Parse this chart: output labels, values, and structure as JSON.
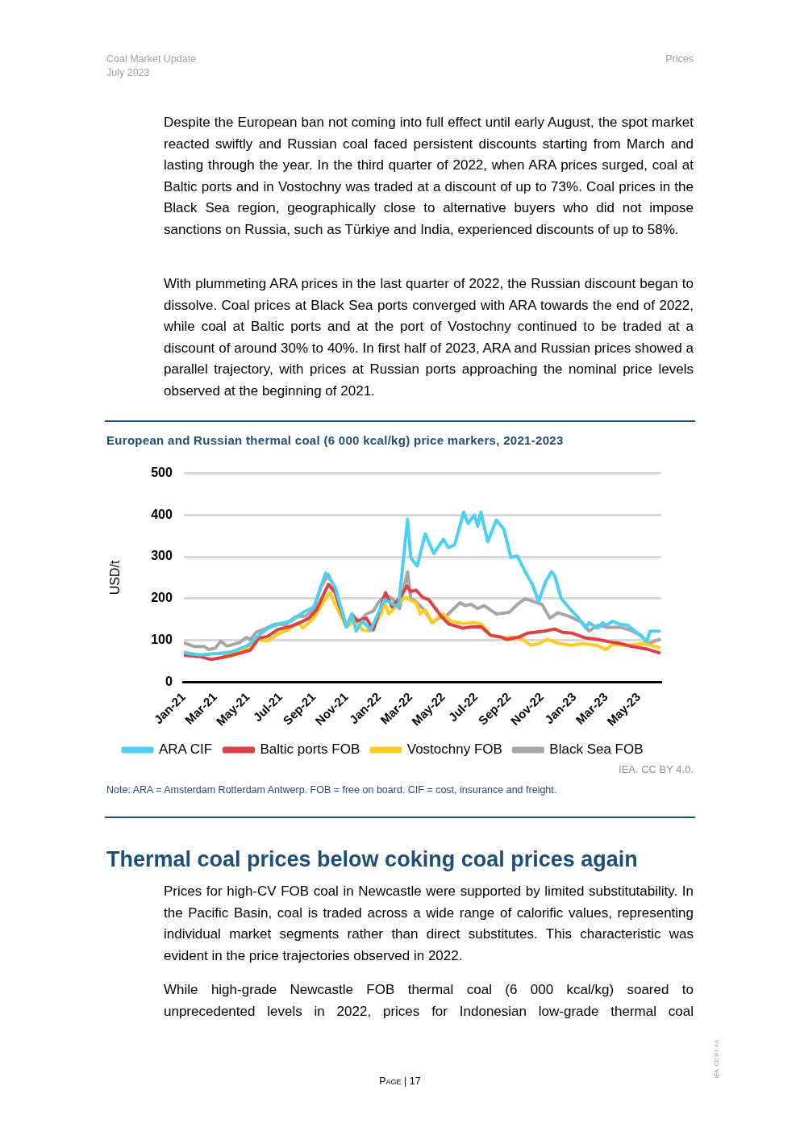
{
  "chart_data": {
    "type": "line",
    "title": "European and Russian thermal coal (6 000 kcal/kg) price markers, 2021-2023",
    "ylabel": "USD/t",
    "annotations": [
      "Coal Market Update",
      "July 2023",
      "Prices",
      "Despite the European ban not coming into full effect until early August, the spot market reacted swiftly and Russian coal faced persistent discounts starting from March and lasting through the year. In the third quarter of 2022, when ARA prices surged, coal at Baltic ports and in Vostochny was traded at a discount of up to 73%. Coal prices in the Black Sea region, geographically close to alternative buyers who did not impose sanctions on Russia, such as Türkiye and India, experienced discounts of up to 58%.",
      "With plummeting ARA prices in the last quarter of 2022, the Russian discount began to dissolve. Coal prices at Black Sea ports converged with ARA towards the end of 2022, while coal at Baltic ports and at the port of Vostochny continued to be traded at a discount of around 30% to 40%. In first half of 2023, ARA and Russian prices showed a parallel trajectory, with prices at Russian ports approaching the nominal price levels observed at the beginning of 2021.",
      "IEA. CC BY 4.0.",
      "Note: ARA = Amsterdam Rotterdam Antwerp. FOB = free on board. CIF = cost, insurance and freight.",
      "Thermal coal prices below coking coal prices again",
      "Prices for high-CV FOB coal in Newcastle were supported by limited substitutability. In the Pacific Basin, coal is traded across a wide range of calorific values, representing individual market segments rather than direct substitutes. This characteristic was evident in the price trajectories observed in 2022.",
      "While high-grade Newcastle FOB thermal coal (6 000 kcal/kg) soared to unprecedented levels in 2022, prices for Indonesian low-grade thermal coal",
      "Page | 17",
      "IEA. CC BY 4.0."
    ],
    "xlim": [
      "2021-01-01",
      "2023-06-12"
    ],
    "xticks": [
      {
        "value": "2021-01-01",
        "label": "Jan-21"
      },
      {
        "value": "2021-03-01",
        "label": "Mar-21"
      },
      {
        "value": "2021-05-01",
        "label": "May-21"
      },
      {
        "value": "2021-07-01",
        "label": "Jul-21"
      },
      {
        "value": "2021-09-01",
        "label": "Sep-21"
      },
      {
        "value": "2021-11-01",
        "label": "Nov-21"
      },
      {
        "value": "2022-01-01",
        "label": "Jan-22"
      },
      {
        "value": "2022-03-01",
        "label": "Mar-22"
      },
      {
        "value": "2022-05-01",
        "label": "May-22"
      },
      {
        "value": "2022-07-01",
        "label": "Jul-22"
      },
      {
        "value": "2022-09-01",
        "label": "Sep-22"
      },
      {
        "value": "2022-11-01",
        "label": "Nov-22"
      },
      {
        "value": "2023-01-01",
        "label": "Jan-23"
      },
      {
        "value": "2023-03-01",
        "label": "Mar-23"
      },
      {
        "value": "2023-05-01",
        "label": "May-23"
      }
    ],
    "ylim": [
      0,
      500
    ],
    "yticks": [
      0,
      100,
      200,
      300,
      400,
      500
    ],
    "grid": "y",
    "legend": "bottom",
    "marker": "none",
    "series": [
      {
        "name": "ARA CIF",
        "color": "#4dd0f5",
        "x": [
          "2021-01-01",
          "2021-02-01",
          "2021-03-01",
          "2021-04-01",
          "2021-05-01",
          "2021-05-21",
          "2021-06-08",
          "2021-06-26",
          "2021-07-21",
          "2021-08-11",
          "2021-09-01",
          "2021-09-23",
          "2021-10-11",
          "2021-11-01",
          "2021-11-11",
          "2021-11-19",
          "2021-12-01",
          "2021-12-16",
          "2022-01-11",
          "2022-02-06",
          "2022-02-23",
          "2022-03-01",
          "2022-03-13",
          "2022-03-28",
          "2022-04-13",
          "2022-05-01",
          "2022-05-10",
          "2022-05-22",
          "2022-06-08",
          "2022-06-16",
          "2022-06-28",
          "2022-07-04",
          "2022-07-10",
          "2022-07-23",
          "2022-08-08",
          "2022-08-22",
          "2022-09-04",
          "2022-09-16",
          "2022-10-01",
          "2022-10-14",
          "2022-10-26",
          "2022-11-08",
          "2022-11-19",
          "2022-11-25",
          "2022-12-07",
          "2022-12-25",
          "2023-01-07",
          "2023-01-22",
          "2023-01-28",
          "2023-02-13",
          "2023-02-22",
          "2023-03-02",
          "2023-03-13",
          "2023-03-25",
          "2023-04-10",
          "2023-05-01",
          "2023-05-16",
          "2023-05-22",
          "2023-06-08"
        ],
        "values": [
          70,
          65,
          68,
          72,
          88,
          112,
          129,
          139,
          146,
          166,
          180,
          261,
          227,
          132,
          163,
          122,
          146,
          125,
          197,
          180,
          390,
          298,
          278,
          355,
          308,
          342,
          322,
          329,
          407,
          380,
          400,
          373,
          407,
          336,
          388,
          366,
          298,
          302,
          264,
          234,
          193,
          241,
          264,
          254,
          200,
          173,
          156,
          129,
          142,
          129,
          142,
          136,
          146,
          139,
          136,
          115,
          98,
          122,
          122
        ]
      },
      {
        "name": "Baltic ports FOB",
        "color": "#e04040",
        "x": [
          "2021-01-03",
          "2021-02-01",
          "2021-02-21",
          "2021-03-11",
          "2021-04-01",
          "2021-04-21",
          "2021-05-06",
          "2021-05-21",
          "2021-06-06",
          "2021-06-26",
          "2021-07-16",
          "2021-08-06",
          "2021-08-23",
          "2021-09-06",
          "2021-09-28",
          "2021-10-11",
          "2021-11-01",
          "2021-11-11",
          "2021-11-21",
          "2021-12-08",
          "2021-12-21",
          "2022-01-13",
          "2022-01-25",
          "2022-02-07",
          "2022-02-22",
          "2022-03-01",
          "2022-03-11",
          "2022-03-23",
          "2022-04-04",
          "2022-04-16",
          "2022-04-26",
          "2022-05-11",
          "2022-06-07",
          "2022-06-22",
          "2022-07-11",
          "2022-07-28",
          "2022-08-16",
          "2022-08-28",
          "2022-09-20",
          "2022-10-05",
          "2022-11-05",
          "2022-11-25",
          "2022-12-10",
          "2022-12-28",
          "2023-01-20",
          "2023-02-14",
          "2023-03-04",
          "2023-03-25",
          "2023-04-19",
          "2023-05-16",
          "2023-06-08"
        ],
        "values": [
          64,
          61,
          54,
          58,
          64,
          71,
          77,
          105,
          109,
          126,
          132,
          142,
          153,
          173,
          234,
          214,
          132,
          163,
          146,
          153,
          125,
          214,
          180,
          200,
          230,
          217,
          220,
          203,
          197,
          176,
          159,
          139,
          129,
          132,
          132,
          112,
          108,
          102,
          108,
          117,
          122,
          127,
          119,
          117,
          106,
          102,
          97,
          93,
          85,
          79,
          70
        ]
      },
      {
        "name": "Vostochny FOB",
        "color": "#ffcc22",
        "x": [
          "2021-01-03",
          "2021-02-01",
          "2021-02-21",
          "2021-03-21",
          "2021-04-16",
          "2021-05-06",
          "2021-05-21",
          "2021-06-06",
          "2021-06-26",
          "2021-07-16",
          "2021-08-03",
          "2021-08-11",
          "2021-09-01",
          "2021-09-18",
          "2021-10-01",
          "2021-10-13",
          "2021-11-01",
          "2021-11-16",
          "2021-12-01",
          "2021-12-16",
          "2022-01-06",
          "2022-01-11",
          "2022-01-19",
          "2022-02-01",
          "2022-02-19",
          "2022-03-01",
          "2022-03-11",
          "2022-03-19",
          "2022-03-28",
          "2022-04-10",
          "2022-04-22",
          "2022-05-01",
          "2022-05-14",
          "2022-06-07",
          "2022-06-26",
          "2022-07-11",
          "2022-07-28",
          "2022-08-22",
          "2022-09-11",
          "2022-09-26",
          "2022-10-11",
          "2022-10-26",
          "2022-11-11",
          "2022-12-01",
          "2022-12-25",
          "2023-01-16",
          "2023-02-11",
          "2023-03-01",
          "2023-03-13",
          "2023-04-10",
          "2023-05-10",
          "2023-06-08"
        ],
        "values": [
          71,
          64,
          68,
          68,
          75,
          85,
          102,
          98,
          115,
          126,
          142,
          129,
          153,
          190,
          214,
          180,
          132,
          146,
          125,
          122,
          166,
          190,
          163,
          180,
          203,
          195,
          190,
          163,
          173,
          142,
          156,
          163,
          146,
          140,
          142,
          139,
          112,
          106,
          108,
          102,
          88,
          92,
          102,
          93,
          88,
          92,
          88,
          78,
          90,
          88,
          92,
          83
        ]
      },
      {
        "name": "Black Sea FOB",
        "color": "#a6a6a6",
        "x": [
          "2021-01-03",
          "2021-01-21",
          "2021-02-08",
          "2021-02-16",
          "2021-03-01",
          "2021-03-11",
          "2021-03-23",
          "2021-04-16",
          "2021-04-28",
          "2021-05-06",
          "2021-05-16",
          "2021-06-01",
          "2021-06-21",
          "2021-07-11",
          "2021-07-28",
          "2021-08-16",
          "2021-09-01",
          "2021-09-13",
          "2021-09-28",
          "2021-10-11",
          "2021-10-21",
          "2021-11-01",
          "2021-11-13",
          "2021-11-26",
          "2021-12-08",
          "2021-12-21",
          "2022-01-01",
          "2022-01-13",
          "2022-01-26",
          "2022-02-08",
          "2022-02-23",
          "2022-03-01",
          "2022-03-13",
          "2022-03-26",
          "2022-04-10",
          "2022-04-22",
          "2022-05-07",
          "2022-06-01",
          "2022-06-11",
          "2022-06-22",
          "2022-07-04",
          "2022-07-16",
          "2022-08-08",
          "2022-09-01",
          "2022-09-16",
          "2022-10-01",
          "2022-11-01",
          "2022-11-16",
          "2022-12-01",
          "2022-12-25",
          "2023-01-16",
          "2023-01-28",
          "2023-02-14",
          "2023-03-04",
          "2023-03-28",
          "2023-04-14",
          "2023-05-04",
          "2023-05-19",
          "2023-06-08"
        ],
        "values": [
          93,
          85,
          85,
          78,
          81,
          98,
          86,
          95,
          107,
          102,
          119,
          127,
          139,
          138,
          156,
          158,
          173,
          224,
          258,
          220,
          166,
          132,
          156,
          146,
          163,
          170,
          193,
          208,
          200,
          176,
          264,
          200,
          190,
          173,
          142,
          153,
          159,
          190,
          183,
          186,
          176,
          183,
          163,
          167,
          186,
          200,
          186,
          153,
          166,
          156,
          142,
          122,
          136,
          131,
          131,
          125,
          112,
          92,
          102
        ]
      }
    ]
  }
}
